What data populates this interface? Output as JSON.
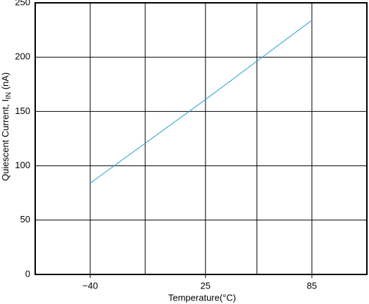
{
  "chart_data": {
    "type": "line",
    "xlabel": "Temperature(°C)",
    "ylabel": "Quiescent Current, I",
    "ylabel_sub": "IN",
    "ylabel_tail": " (nA)",
    "x": [
      -40,
      25,
      85
    ],
    "series": [
      {
        "color": "#2a9fd6",
        "values": [
          84,
          161,
          234
        ]
      }
    ],
    "xlim": [
      -71,
      116
    ],
    "xticks": [
      {
        "value": -40,
        "label": "−40"
      },
      25,
      85
    ],
    "x_minor_grid": [
      -9,
      54
    ],
    "ylim": [
      0,
      250
    ],
    "yticks": [
      0,
      50,
      100,
      150,
      200,
      250
    ],
    "grid": true
  }
}
